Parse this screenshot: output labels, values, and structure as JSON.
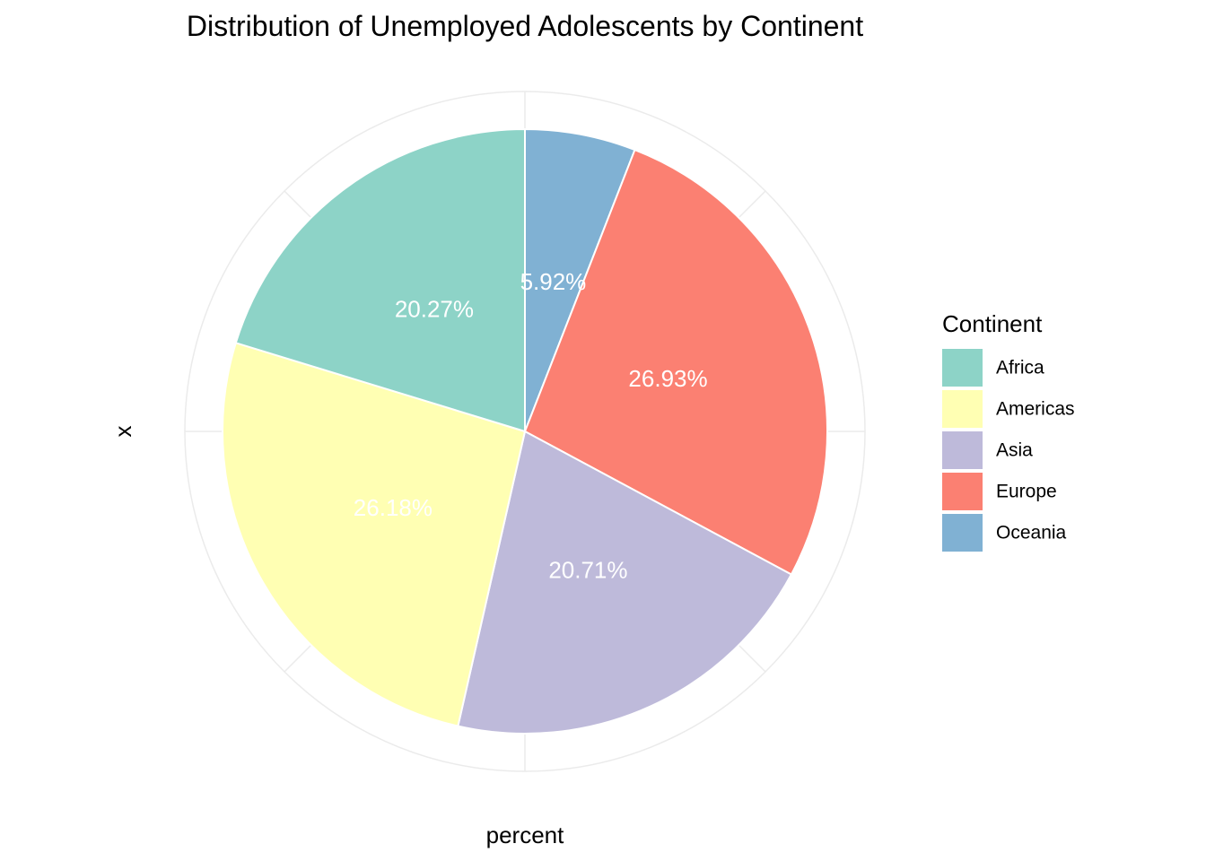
{
  "chart_data": {
    "type": "pie",
    "title": "Distribution of Unemployed Adolescents by Continent",
    "xlabel": "percent",
    "ylabel": "x",
    "legend_title": "Continent",
    "legend_position": "right",
    "grid": true,
    "start_angle_deg": 0,
    "direction": "clockwise",
    "slice_order": [
      "Oceania",
      "Europe",
      "Asia",
      "Americas",
      "Africa"
    ],
    "categories": [
      "Africa",
      "Americas",
      "Asia",
      "Europe",
      "Oceania"
    ],
    "values": [
      20.27,
      26.18,
      20.71,
      26.93,
      5.92
    ],
    "labels": [
      "20.27%",
      "26.18%",
      "20.71%",
      "26.93%",
      "5.92%"
    ],
    "colors": [
      "#8DD3C7",
      "#FFFFB3",
      "#BEBADA",
      "#FB8072",
      "#80B1D3"
    ]
  }
}
